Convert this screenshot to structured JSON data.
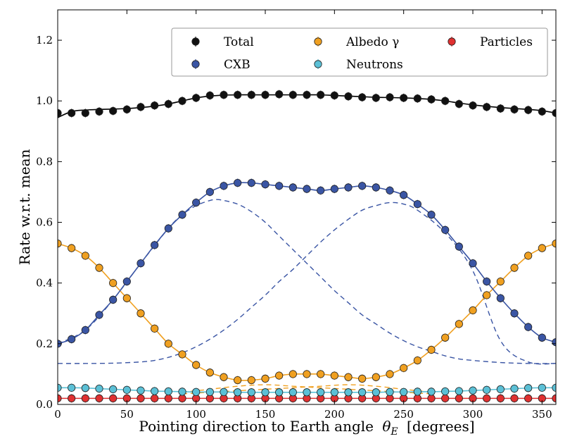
{
  "chart_data": {
    "type": "line",
    "xlabel_main": "Pointing direction to Earth angle",
    "xlabel_symbol": "θ",
    "xlabel_sub": "E",
    "xlabel_unit": "[degrees]",
    "ylabel": "Rate w.r.t. mean",
    "xlim": [
      0,
      360
    ],
    "ylim": [
      0,
      1.3
    ],
    "xticks": [
      "0",
      "50",
      "100",
      "150",
      "200",
      "250",
      "300",
      "350"
    ],
    "xtick_values": [
      0,
      50,
      100,
      150,
      200,
      250,
      300,
      350
    ],
    "yticks": [
      "0.0",
      "0.2",
      "0.4",
      "0.6",
      "0.8",
      "1.0",
      "1.2"
    ],
    "ytick_values": [
      0.0,
      0.2,
      0.4,
      0.6,
      0.8,
      1.0,
      1.2
    ],
    "grid": false,
    "legend_position": "top-right",
    "x": [
      0,
      10,
      20,
      30,
      40,
      50,
      60,
      70,
      80,
      90,
      100,
      110,
      120,
      130,
      140,
      150,
      160,
      170,
      180,
      190,
      200,
      210,
      220,
      230,
      240,
      250,
      260,
      270,
      280,
      290,
      300,
      310,
      320,
      330,
      340,
      350,
      360
    ],
    "series": [
      {
        "name": "Total",
        "color": "#111111",
        "values": [
          0.96,
          0.96,
          0.96,
          0.965,
          0.967,
          0.972,
          0.98,
          0.985,
          0.99,
          1.0,
          1.01,
          1.018,
          1.02,
          1.02,
          1.02,
          1.02,
          1.022,
          1.02,
          1.02,
          1.02,
          1.018,
          1.015,
          1.012,
          1.01,
          1.012,
          1.01,
          1.008,
          1.005,
          1.0,
          0.99,
          0.985,
          0.98,
          0.975,
          0.972,
          0.97,
          0.965,
          0.96
        ],
        "curve_values": [
          0.945,
          0.965,
          0.97,
          0.972,
          0.973,
          0.975,
          0.978,
          0.983,
          0.99,
          1.0,
          1.01,
          1.016,
          1.019,
          1.02,
          1.02,
          1.02,
          1.02,
          1.02,
          1.02,
          1.02,
          1.018,
          1.016,
          1.014,
          1.012,
          1.011,
          1.01,
          1.008,
          1.005,
          1.0,
          0.993,
          0.987,
          0.982,
          0.978,
          0.975,
          0.972,
          0.968,
          0.96
        ]
      },
      {
        "name": "CXB",
        "color": "#3a55a4",
        "values": [
          0.2,
          0.215,
          0.245,
          0.295,
          0.345,
          0.405,
          0.465,
          0.525,
          0.58,
          0.625,
          0.665,
          0.7,
          0.72,
          0.73,
          0.73,
          0.725,
          0.72,
          0.715,
          0.71,
          0.705,
          0.71,
          0.715,
          0.72,
          0.715,
          0.705,
          0.69,
          0.66,
          0.625,
          0.575,
          0.52,
          0.465,
          0.405,
          0.35,
          0.3,
          0.255,
          0.22,
          0.205
        ],
        "curve_values": [
          0.2,
          0.215,
          0.245,
          0.295,
          0.345,
          0.405,
          0.465,
          0.525,
          0.58,
          0.625,
          0.665,
          0.7,
          0.72,
          0.73,
          0.73,
          0.725,
          0.72,
          0.715,
          0.71,
          0.705,
          0.71,
          0.715,
          0.72,
          0.715,
          0.705,
          0.69,
          0.66,
          0.625,
          0.575,
          0.52,
          0.465,
          0.405,
          0.35,
          0.3,
          0.255,
          0.22,
          0.205
        ]
      },
      {
        "name": "Albedo γ",
        "color": "#f0a020",
        "values": [
          0.53,
          0.515,
          0.49,
          0.45,
          0.4,
          0.35,
          0.3,
          0.25,
          0.2,
          0.165,
          0.13,
          0.105,
          0.09,
          0.08,
          0.08,
          0.085,
          0.095,
          0.1,
          0.1,
          0.1,
          0.095,
          0.09,
          0.085,
          0.09,
          0.1,
          0.12,
          0.145,
          0.18,
          0.22,
          0.265,
          0.31,
          0.36,
          0.405,
          0.45,
          0.49,
          0.515,
          0.53
        ],
        "curve_values": [
          0.53,
          0.515,
          0.49,
          0.45,
          0.4,
          0.35,
          0.3,
          0.25,
          0.2,
          0.165,
          0.13,
          0.105,
          0.09,
          0.08,
          0.08,
          0.085,
          0.095,
          0.1,
          0.1,
          0.1,
          0.095,
          0.09,
          0.085,
          0.09,
          0.1,
          0.12,
          0.145,
          0.18,
          0.22,
          0.265,
          0.31,
          0.36,
          0.405,
          0.45,
          0.49,
          0.515,
          0.53
        ]
      },
      {
        "name": "Neutrons",
        "color": "#5bc0d6",
        "values": [
          0.055,
          0.055,
          0.054,
          0.052,
          0.05,
          0.048,
          0.046,
          0.044,
          0.043,
          0.042,
          0.041,
          0.041,
          0.041,
          0.04,
          0.04,
          0.04,
          0.04,
          0.04,
          0.04,
          0.04,
          0.04,
          0.04,
          0.04,
          0.04,
          0.041,
          0.041,
          0.042,
          0.042,
          0.043,
          0.044,
          0.046,
          0.048,
          0.05,
          0.052,
          0.054,
          0.055,
          0.055
        ],
        "curve_values": [
          0.055,
          0.055,
          0.054,
          0.052,
          0.05,
          0.048,
          0.046,
          0.044,
          0.043,
          0.042,
          0.041,
          0.041,
          0.041,
          0.04,
          0.04,
          0.04,
          0.04,
          0.04,
          0.04,
          0.04,
          0.04,
          0.04,
          0.04,
          0.04,
          0.041,
          0.041,
          0.042,
          0.042,
          0.043,
          0.044,
          0.046,
          0.048,
          0.05,
          0.052,
          0.054,
          0.055,
          0.055
        ]
      },
      {
        "name": "Particles",
        "color": "#e03030",
        "values": [
          0.02,
          0.02,
          0.02,
          0.02,
          0.02,
          0.02,
          0.02,
          0.02,
          0.02,
          0.02,
          0.02,
          0.02,
          0.02,
          0.02,
          0.02,
          0.02,
          0.02,
          0.02,
          0.02,
          0.02,
          0.02,
          0.02,
          0.02,
          0.02,
          0.02,
          0.02,
          0.02,
          0.02,
          0.02,
          0.02,
          0.02,
          0.02,
          0.02,
          0.02,
          0.02,
          0.02,
          0.02
        ],
        "curve_values": [
          0.02,
          0.02,
          0.02,
          0.02,
          0.02,
          0.02,
          0.02,
          0.02,
          0.02,
          0.02,
          0.02,
          0.02,
          0.02,
          0.02,
          0.02,
          0.02,
          0.02,
          0.02,
          0.02,
          0.02,
          0.02,
          0.02,
          0.02,
          0.02,
          0.02,
          0.02,
          0.02,
          0.02,
          0.02,
          0.02,
          0.02,
          0.02,
          0.02,
          0.02,
          0.02,
          0.02,
          0.02
        ]
      }
    ],
    "component_curves": [
      {
        "color": "#3a55a4",
        "style": "dashed",
        "x": [
          0,
          20,
          40,
          60,
          70,
          80,
          90,
          100,
          110,
          120,
          130,
          140,
          150,
          160,
          170,
          180,
          190,
          200,
          210,
          220,
          230,
          240,
          250,
          260,
          280,
          300,
          320,
          340,
          360
        ],
        "y": [
          0.135,
          0.135,
          0.136,
          0.14,
          0.145,
          0.155,
          0.17,
          0.19,
          0.215,
          0.245,
          0.28,
          0.32,
          0.36,
          0.405,
          0.445,
          0.49,
          0.535,
          0.575,
          0.61,
          0.64,
          0.655,
          0.665,
          0.66,
          0.64,
          0.565,
          0.44,
          0.21,
          0.14,
          0.135
        ]
      },
      {
        "color": "#3a55a4",
        "style": "dashed",
        "x": [
          0,
          20,
          40,
          60,
          80,
          90,
          100,
          110,
          115,
          120,
          130,
          140,
          150,
          160,
          170,
          180,
          190,
          200,
          210,
          220,
          230,
          240,
          250,
          260,
          270,
          280,
          290,
          300,
          320,
          340,
          360
        ],
        "y": [
          0.2,
          0.245,
          0.345,
          0.465,
          0.58,
          0.625,
          0.655,
          0.672,
          0.675,
          0.672,
          0.66,
          0.635,
          0.6,
          0.555,
          0.51,
          0.465,
          0.42,
          0.375,
          0.335,
          0.295,
          0.265,
          0.235,
          0.21,
          0.19,
          0.175,
          0.16,
          0.15,
          0.145,
          0.138,
          0.135,
          0.135
        ]
      },
      {
        "color": "#f0a020",
        "style": "dashed",
        "x": [
          90,
          110,
          130,
          150,
          170,
          190,
          210,
          230,
          250,
          270
        ],
        "y": [
          0.035,
          0.04,
          0.045,
          0.05,
          0.055,
          0.06,
          0.065,
          0.06,
          0.05,
          0.04
        ]
      },
      {
        "color": "#f0a020",
        "style": "dashed",
        "x": [
          90,
          110,
          130,
          150,
          170,
          190,
          210,
          230,
          250,
          270
        ],
        "y": [
          0.04,
          0.05,
          0.06,
          0.065,
          0.06,
          0.055,
          0.05,
          0.045,
          0.04,
          0.035
        ]
      }
    ]
  }
}
